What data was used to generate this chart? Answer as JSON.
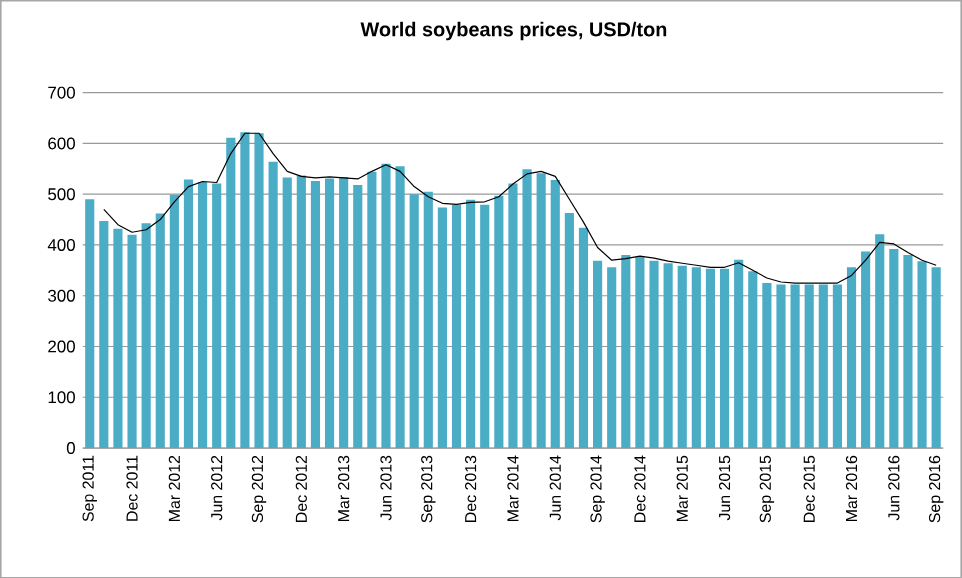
{
  "chart_data": {
    "type": "bar",
    "title": "World soybeans prices, USD/ton",
    "categories": [
      "Sep 2011",
      null,
      null,
      "Dec 2011",
      null,
      null,
      "Mar 2012",
      null,
      null,
      "Jun 2012",
      null,
      null,
      "Sep 2012",
      null,
      null,
      "Dec 2012",
      null,
      null,
      "Mar 2013",
      null,
      null,
      "Jun 2013",
      null,
      null,
      "Sep 2013",
      null,
      null,
      "Dec 2013",
      null,
      null,
      "Mar 2014",
      null,
      null,
      "Jun 2014",
      null,
      null,
      "Sep 2014",
      null,
      null,
      "Dec 2014",
      null,
      null,
      "Mar 2015",
      null,
      null,
      "Jun 2015",
      null,
      null,
      "Sep 2015",
      null,
      null,
      "Dec 2015",
      null,
      null,
      "Mar 2016",
      null,
      null,
      "Jun 2016",
      null,
      null,
      "Sep 2016"
    ],
    "series": [
      {
        "color": "#4bacc6",
        "values": [
          490,
          447,
          432,
          420,
          443,
          462,
          499,
          529,
          524,
          521,
          611,
          622,
          620,
          564,
          533,
          537,
          526,
          531,
          534,
          518,
          544,
          560,
          555,
          500,
          505,
          474,
          479,
          489,
          479,
          497,
          521,
          549,
          541,
          528,
          463,
          434,
          369,
          356,
          380,
          377,
          369,
          364,
          359,
          356,
          353,
          353,
          371,
          348,
          325,
          322,
          322,
          322,
          322,
          322,
          356,
          387,
          421,
          392,
          380,
          368,
          356
        ]
      },
      {
        "type": "line",
        "color": "#000000",
        "values": [
          null,
          470,
          440,
          425,
          430,
          450,
          485,
          515,
          525,
          523,
          580,
          620,
          620,
          580,
          545,
          535,
          532,
          534,
          532,
          530,
          545,
          558,
          545,
          515,
          495,
          482,
          480,
          484,
          485,
          495,
          520,
          540,
          545,
          535,
          490,
          445,
          395,
          370,
          373,
          378,
          374,
          368,
          364,
          360,
          356,
          356,
          365,
          350,
          335,
          327,
          325,
          325,
          325,
          325,
          340,
          370,
          405,
          402,
          385,
          370,
          360
        ]
      }
    ],
    "ylim": [
      0,
      700
    ],
    "yticks": [
      0,
      100,
      200,
      300,
      400,
      500,
      600,
      700
    ],
    "grid": "y"
  }
}
